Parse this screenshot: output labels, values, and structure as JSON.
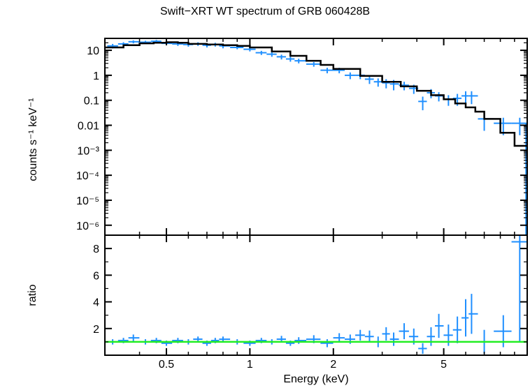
{
  "chart_data": {
    "type": "scatter",
    "title": "Swift−XRT WT spectrum of GRB 060428B",
    "xlabel": "Energy (keV)",
    "xscale": "log",
    "xlim": [
      0.3,
      10
    ],
    "x_tick_labels": [
      "0.5",
      "1",
      "2",
      "5"
    ],
    "colors": {
      "data": "#1f8fff",
      "model": "#000000",
      "unity": "#22ee22"
    },
    "panels": [
      {
        "name": "spectrum",
        "ylabel": "counts s⁻¹ keV⁻¹",
        "yscale": "log",
        "ylim": [
          4e-07,
          30
        ],
        "y_tick_labels": [
          "10",
          "1",
          "0.1",
          "0.01",
          "10⁻³",
          "10⁻⁴",
          "10⁻⁵",
          "10⁻⁶"
        ],
        "model_step": {
          "x": [
            0.3,
            0.35,
            0.4,
            0.45,
            0.5,
            0.55,
            0.6,
            0.7,
            0.8,
            0.9,
            1.0,
            1.2,
            1.4,
            1.6,
            1.8,
            2.0,
            2.5,
            3.0,
            3.5,
            4.0,
            4.5,
            5.0,
            5.5,
            6.0,
            6.5,
            7.0,
            8.0,
            9.0,
            10.0
          ],
          "y": [
            13,
            16,
            19,
            20,
            21,
            20,
            18,
            17,
            16,
            15,
            13,
            9,
            6,
            3.8,
            2.6,
            1.8,
            0.95,
            0.55,
            0.36,
            0.24,
            0.16,
            0.11,
            0.075,
            0.052,
            0.035,
            0.018,
            0.005,
            0.0015,
            0.0015
          ]
        },
        "data": [
          {
            "x": 0.32,
            "y": 15,
            "yerr": 3
          },
          {
            "x": 0.35,
            "y": 18,
            "yerr": 3
          },
          {
            "x": 0.38,
            "y": 22,
            "yerr": 3
          },
          {
            "x": 0.42,
            "y": 21,
            "yerr": 3
          },
          {
            "x": 0.46,
            "y": 23,
            "yerr": 3
          },
          {
            "x": 0.5,
            "y": 19,
            "yerr": 3
          },
          {
            "x": 0.55,
            "y": 18,
            "yerr": 3
          },
          {
            "x": 0.6,
            "y": 17,
            "yerr": 3
          },
          {
            "x": 0.65,
            "y": 18,
            "yerr": 3
          },
          {
            "x": 0.7,
            "y": 16,
            "yerr": 3
          },
          {
            "x": 0.75,
            "y": 17,
            "yerr": 3
          },
          {
            "x": 0.8,
            "y": 15,
            "yerr": 3
          },
          {
            "x": 0.9,
            "y": 13,
            "yerr": 2
          },
          {
            "x": 1.0,
            "y": 11,
            "yerr": 2
          },
          {
            "x": 1.1,
            "y": 8,
            "yerr": 1.5
          },
          {
            "x": 1.2,
            "y": 7,
            "yerr": 1.5
          },
          {
            "x": 1.3,
            "y": 5.5,
            "yerr": 1.2
          },
          {
            "x": 1.4,
            "y": 4.5,
            "yerr": 1
          },
          {
            "x": 1.5,
            "y": 3.8,
            "yerr": 0.8
          },
          {
            "x": 1.7,
            "y": 2.8,
            "yerr": 0.6
          },
          {
            "x": 1.9,
            "y": 1.6,
            "yerr": 0.4
          },
          {
            "x": 2.1,
            "y": 1.6,
            "yerr": 0.4
          },
          {
            "x": 2.3,
            "y": 1.0,
            "yerr": 0.3
          },
          {
            "x": 2.5,
            "y": 1.0,
            "yerr": 0.3
          },
          {
            "x": 2.7,
            "y": 0.7,
            "yerr": 0.25
          },
          {
            "x": 2.9,
            "y": 0.55,
            "yerr": 0.2
          },
          {
            "x": 3.1,
            "y": 0.5,
            "yerr": 0.2
          },
          {
            "x": 3.3,
            "y": 0.45,
            "yerr": 0.2
          },
          {
            "x": 3.6,
            "y": 0.4,
            "yerr": 0.15
          },
          {
            "x": 3.9,
            "y": 0.3,
            "yerr": 0.12
          },
          {
            "x": 4.2,
            "y": 0.09,
            "yerr": 0.05
          },
          {
            "x": 4.5,
            "y": 0.2,
            "yerr": 0.08
          },
          {
            "x": 4.8,
            "y": 0.15,
            "yerr": 0.06
          },
          {
            "x": 5.2,
            "y": 0.11,
            "yerr": 0.05
          },
          {
            "x": 5.6,
            "y": 0.12,
            "yerr": 0.06
          },
          {
            "x": 6.0,
            "y": 0.15,
            "yerr": 0.08
          },
          {
            "x": 6.3,
            "y": 0.15,
            "yerr": 0.08
          },
          {
            "x": 7.0,
            "y": 0.018,
            "yerr": 0.012
          },
          {
            "x": 8.2,
            "y": 0.012,
            "yerr": 0.008
          },
          {
            "x": 9.4,
            "y": 0.012,
            "yerr": 0.008
          }
        ]
      },
      {
        "name": "ratio",
        "ylabel": "ratio",
        "yscale": "linear",
        "ylim": [
          0,
          9
        ],
        "y_tick_labels": [
          "2",
          "4",
          "6",
          "8"
        ],
        "unity_line": 1,
        "data": [
          {
            "x": 0.32,
            "y": 1.0,
            "yerr": 0.2
          },
          {
            "x": 0.35,
            "y": 1.1,
            "yerr": 0.2
          },
          {
            "x": 0.38,
            "y": 1.3,
            "yerr": 0.25
          },
          {
            "x": 0.42,
            "y": 1.0,
            "yerr": 0.2
          },
          {
            "x": 0.46,
            "y": 1.1,
            "yerr": 0.2
          },
          {
            "x": 0.5,
            "y": 0.9,
            "yerr": 0.2
          },
          {
            "x": 0.55,
            "y": 1.1,
            "yerr": 0.2
          },
          {
            "x": 0.6,
            "y": 1.0,
            "yerr": 0.2
          },
          {
            "x": 0.65,
            "y": 1.2,
            "yerr": 0.2
          },
          {
            "x": 0.7,
            "y": 0.9,
            "yerr": 0.2
          },
          {
            "x": 0.75,
            "y": 1.1,
            "yerr": 0.2
          },
          {
            "x": 0.8,
            "y": 1.2,
            "yerr": 0.2
          },
          {
            "x": 0.9,
            "y": 1.0,
            "yerr": 0.2
          },
          {
            "x": 1.0,
            "y": 0.9,
            "yerr": 0.2
          },
          {
            "x": 1.1,
            "y": 1.1,
            "yerr": 0.2
          },
          {
            "x": 1.2,
            "y": 1.0,
            "yerr": 0.2
          },
          {
            "x": 1.3,
            "y": 1.2,
            "yerr": 0.25
          },
          {
            "x": 1.4,
            "y": 0.9,
            "yerr": 0.2
          },
          {
            "x": 1.5,
            "y": 1.1,
            "yerr": 0.25
          },
          {
            "x": 1.7,
            "y": 1.2,
            "yerr": 0.3
          },
          {
            "x": 1.9,
            "y": 0.9,
            "yerr": 0.3
          },
          {
            "x": 2.1,
            "y": 1.3,
            "yerr": 0.35
          },
          {
            "x": 2.3,
            "y": 1.2,
            "yerr": 0.35
          },
          {
            "x": 2.5,
            "y": 1.5,
            "yerr": 0.4
          },
          {
            "x": 2.7,
            "y": 1.4,
            "yerr": 0.45
          },
          {
            "x": 2.9,
            "y": 1.0,
            "yerr": 0.4
          },
          {
            "x": 3.1,
            "y": 1.6,
            "yerr": 0.5
          },
          {
            "x": 3.3,
            "y": 1.2,
            "yerr": 0.5
          },
          {
            "x": 3.6,
            "y": 1.8,
            "yerr": 0.6
          },
          {
            "x": 3.9,
            "y": 1.4,
            "yerr": 0.6
          },
          {
            "x": 4.2,
            "y": 0.5,
            "yerr": 0.4
          },
          {
            "x": 4.5,
            "y": 1.4,
            "yerr": 0.7
          },
          {
            "x": 4.8,
            "y": 2.2,
            "yerr": 0.9
          },
          {
            "x": 5.2,
            "y": 1.5,
            "yerr": 0.8
          },
          {
            "x": 5.6,
            "y": 1.9,
            "yerr": 1.0
          },
          {
            "x": 6.0,
            "y": 2.8,
            "yerr": 1.4
          },
          {
            "x": 6.3,
            "y": 3.1,
            "yerr": 1.5
          },
          {
            "x": 7.0,
            "y": 1.0,
            "yerr": 0.9
          },
          {
            "x": 8.2,
            "y": 1.8,
            "yerr": 1.2
          },
          {
            "x": 9.4,
            "y": 8.5,
            "yerr": 7.5
          }
        ]
      }
    ]
  }
}
